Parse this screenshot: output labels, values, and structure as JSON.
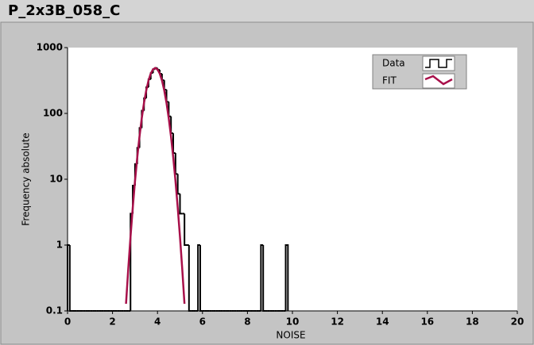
{
  "chart_data": {
    "type": "histogram",
    "title": "P_2x3B_058_C",
    "xlabel": "NOISE",
    "ylabel": "Frequency absolute",
    "xlim": [
      0,
      20
    ],
    "xticks": [
      0,
      2,
      4,
      6,
      8,
      10,
      12,
      14,
      16,
      18,
      20
    ],
    "ylim": [
      0.1,
      1000
    ],
    "yticks": [
      0.1,
      1,
      10,
      100,
      1000
    ],
    "log_y": true,
    "grid": false,
    "legend": "top-right",
    "series": [
      {
        "name": "Data",
        "color": "#000000",
        "bins": [
          0,
          0.1,
          0.2,
          0.3,
          0.4,
          0.5,
          0.6,
          0.7,
          0.8,
          0.9,
          1,
          1.1,
          1.2,
          1.3,
          1.4,
          1.5,
          1.6,
          1.7,
          1.8,
          1.9,
          2,
          2.1,
          2.2,
          2.3,
          2.4,
          2.5,
          2.6,
          2.7,
          2.8,
          2.9,
          3,
          3.1,
          3.2,
          3.3,
          3.4,
          3.5,
          3.6,
          3.7,
          3.8,
          3.9,
          4,
          4.1,
          4.2,
          4.3,
          4.4,
          4.5,
          4.6,
          4.7,
          4.8,
          4.9,
          5,
          5.1,
          5.2,
          5.3,
          5.4,
          5.5,
          5.6,
          5.7,
          5.8,
          5.9,
          6,
          6.1,
          6.2,
          6.3,
          6.4,
          6.5,
          6.6,
          6.7,
          6.8,
          6.9,
          7,
          7.1,
          7.2,
          7.3,
          7.4,
          7.5,
          7.6,
          7.7,
          7.8,
          7.9,
          8,
          8.1,
          8.2,
          8.3,
          8.4,
          8.5,
          8.6,
          8.7,
          8.8,
          8.9,
          9,
          9.1,
          9.2,
          9.3,
          9.4,
          9.5,
          9.6,
          9.7,
          9.8
        ],
        "values": [
          1,
          0,
          0,
          0,
          0,
          0,
          0,
          0,
          0,
          0,
          0,
          0,
          0,
          0,
          0,
          0,
          0,
          0,
          0,
          0,
          0,
          0,
          0,
          0,
          0,
          0,
          0,
          0,
          3,
          8,
          17,
          30,
          60,
          110,
          170,
          250,
          330,
          410,
          470,
          490,
          460,
          400,
          320,
          230,
          150,
          90,
          50,
          25,
          12,
          6,
          3,
          3,
          1,
          1,
          0,
          0,
          0,
          0,
          1,
          0,
          0,
          0,
          0,
          0,
          0,
          0,
          0,
          0,
          0,
          0,
          0,
          0,
          0,
          0,
          0,
          0,
          0,
          0,
          0,
          0,
          0,
          0,
          0,
          0,
          0,
          0,
          1,
          0,
          0,
          0,
          0,
          0,
          0,
          0,
          0,
          0,
          0,
          1
        ]
      },
      {
        "name": "FIT",
        "color": "#a8104a",
        "kind": "line",
        "x": [
          2.6,
          2.7,
          2.8,
          2.9,
          3.0,
          3.1,
          3.2,
          3.3,
          3.4,
          3.5,
          3.6,
          3.7,
          3.8,
          3.9,
          4.0,
          4.1,
          4.2,
          4.3,
          4.4,
          4.5,
          4.6,
          4.7,
          4.8,
          4.9,
          5.0,
          5.1,
          5.2
        ],
        "values": [
          0.128,
          0.434,
          1.33,
          3.71,
          9.39,
          21.5,
          44.8,
          84.5,
          144.6,
          224.3,
          315.8,
          403.1,
          466.7,
          490,
          466.7,
          403.1,
          315.8,
          224.3,
          144.6,
          84.5,
          44.8,
          21.5,
          9.39,
          3.71,
          1.33,
          0.434,
          0.128
        ]
      }
    ]
  }
}
